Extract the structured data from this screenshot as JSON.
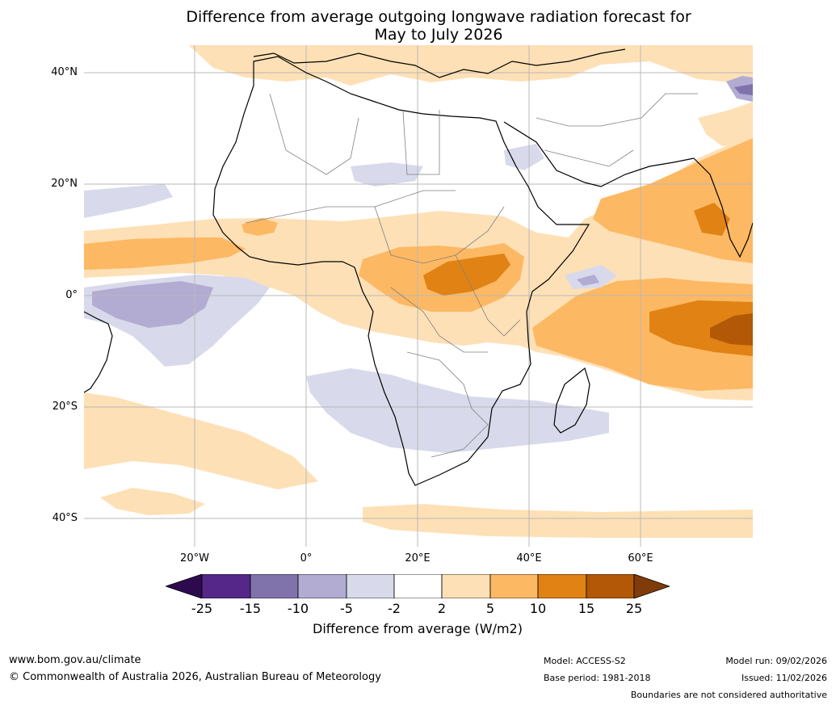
{
  "title_line1": "Difference from average outgoing longwave radiation forecast for",
  "title_line2": "May to July 2026",
  "lat_labels": [
    "40°N",
    "20°N",
    "0°",
    "20°S",
    "40°S"
  ],
  "lon_labels": [
    "20°W",
    "0°",
    "20°E",
    "40°E",
    "60°E"
  ],
  "colorbar": {
    "ticks": [
      "-25",
      "-15",
      "-10",
      "-5",
      "-2",
      "2",
      "5",
      "10",
      "15",
      "25"
    ],
    "label": "Difference from average (W/m2)",
    "colors": {
      "below_-25": "#2d0a4e",
      "-25_-15": "#542788",
      "-15_-10": "#8073ac",
      "-10_-5": "#b2abd2",
      "-5_-2": "#d8daeb",
      "-2_2": "#ffffff",
      "2_5": "#fee0b6",
      "5_10": "#fdb863",
      "10_15": "#e08214",
      "15_25": "#b35806",
      "above_25": "#7f3b08"
    }
  },
  "footer": {
    "website": "www.bom.gov.au/climate",
    "copyright": "© Commonwealth of Australia 2026, Australian Bureau of Meteorology",
    "model": "Model: ACCESS-S2",
    "base_period": "Base period: 1981-2018",
    "model_run": "Model run: 09/02/2026",
    "issued": "Issued: 11/02/2026",
    "disclaimer": "Boundaries are not considered authoritative"
  }
}
